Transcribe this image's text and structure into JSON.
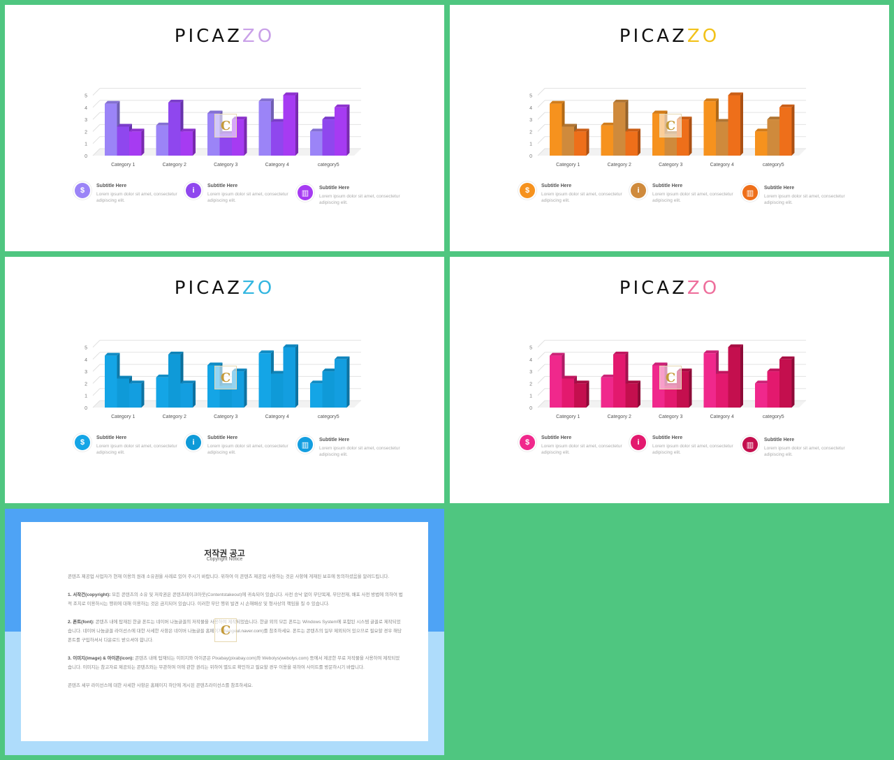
{
  "brand": {
    "prefix": "PICAZ",
    "suffix": "ZO"
  },
  "chart_data": [
    {
      "type": "bar",
      "categories": [
        "Category 1",
        "Category 2",
        "Category 3",
        "Category 4",
        "category5"
      ],
      "series": [
        {
          "values": [
            4.3,
            2.5,
            3.5,
            4.5,
            2.0
          ]
        },
        {
          "values": [
            2.4,
            4.4,
            1.8,
            2.8,
            3.0
          ]
        },
        {
          "values": [
            2.0,
            2.0,
            3.0,
            5.0,
            4.0
          ]
        }
      ],
      "y_ticks": [
        "0",
        "1",
        "2",
        "3",
        "4",
        "5"
      ],
      "ylim": [
        0,
        5
      ],
      "colors": [
        "#9b84f7",
        "#8f47ee",
        "#a63bf2"
      ],
      "accent": "#c9a0e8"
    },
    {
      "type": "bar",
      "categories": [
        "Category 1",
        "Category 2",
        "Category 3",
        "Category 4",
        "category5"
      ],
      "series": [
        {
          "values": [
            4.3,
            2.5,
            3.5,
            4.5,
            2.0
          ]
        },
        {
          "values": [
            2.4,
            4.4,
            1.8,
            2.8,
            3.0
          ]
        },
        {
          "values": [
            2.0,
            2.0,
            3.0,
            5.0,
            4.0
          ]
        }
      ],
      "y_ticks": [
        "0",
        "1",
        "2",
        "3",
        "4",
        "5"
      ],
      "ylim": [
        0,
        5
      ],
      "colors": [
        "#f6921e",
        "#cf8a3c",
        "#ee6f1a"
      ],
      "accent": "#f2c21b"
    },
    {
      "type": "bar",
      "categories": [
        "Category 1",
        "Category 2",
        "Category 3",
        "Category 4",
        "category5"
      ],
      "series": [
        {
          "values": [
            4.3,
            2.5,
            3.5,
            4.5,
            2.0
          ]
        },
        {
          "values": [
            2.4,
            4.4,
            1.8,
            2.8,
            3.0
          ]
        },
        {
          "values": [
            2.0,
            2.0,
            3.0,
            5.0,
            4.0
          ]
        }
      ],
      "y_ticks": [
        "0",
        "1",
        "2",
        "3",
        "4",
        "5"
      ],
      "ylim": [
        0,
        5
      ],
      "colors": [
        "#14a5e6",
        "#0f9ad8",
        "#139ee0"
      ],
      "accent": "#33b6e0"
    },
    {
      "type": "bar",
      "categories": [
        "Category 1",
        "Category 2",
        "Category 3",
        "Category 4",
        "category5"
      ],
      "series": [
        {
          "values": [
            4.3,
            2.5,
            3.5,
            4.5,
            2.0
          ]
        },
        {
          "values": [
            2.4,
            4.4,
            1.8,
            2.8,
            3.0
          ]
        },
        {
          "values": [
            2.0,
            2.0,
            3.0,
            5.0,
            4.0
          ]
        }
      ],
      "y_ticks": [
        "0",
        "1",
        "2",
        "3",
        "4",
        "5"
      ],
      "ylim": [
        0,
        5
      ],
      "colors": [
        "#f0288c",
        "#e3196e",
        "#c40f4e"
      ],
      "accent": "#ee6f9c"
    }
  ],
  "features": [
    {
      "icon": "money-bag-icon",
      "glyph": "$",
      "title": "Subtitle Here",
      "desc": "Lorem ipsum dolor sit amet, consectetur adipiscing elit."
    },
    {
      "icon": "person-info-icon",
      "glyph": "i",
      "title": "Subtitle Here",
      "desc": "Lorem ipsum dolor sit amet, consectetur adipiscing elit."
    },
    {
      "icon": "chart-icon",
      "glyph": "▥",
      "title": "Subtitle Here",
      "desc": "Lorem ipsum dolor sit amet, consectetur adipiscing elit."
    }
  ],
  "watermark": "C",
  "copyright": {
    "title": "저작권 공고",
    "subtitle": "Copyright Notice",
    "intro": "콘텐츠 제공업 사업자가 현재 이용의 원래 소유권을 사례로 있어 주시기 바랍니다. 위하여 이 콘텐츠 제공업 사용하는 것은 사항에 게재된 보호에 동의하셨음을 알려드립니다.",
    "p1_label": "1. 서작건(copyright):",
    "p1": "모든 콘텐츠의 소유 및 저작권은 콘텐츠테이크아웃(Contentstakeout)에 귀속되어 있습니다. 사전 승낙 없이 무단복제, 무단전재, 배포 사전 방법에 의하여 법적 조치로 이용하시는 행위에 대해 이용하는 것은 금지되어 있습니다. 이러한 무단 행위 발견 시 손해배상 및 형사상의 책임을 질 수 있습니다.",
    "p2_label": "2. 폰트(font):",
    "p2": "콘텐츠 내에 탑재된 한글 폰트는 네이버 나눔글꼴의 저작물을 사용하여 제작되었습니다. 한글 외의 모든 폰트는 Windows System에 포함된 시스템 글꼴로 제작되었습니다. 네이버 나눔글꼴 라이선스에 대한 사세한 사항은 네이버 나눔글꼴 홈페이지(hangeul.naver.com)를 참조하세요. 폰트는 콘텐츠의 일부 제외되어 있으므로 필요할 경우 해당 폰트를 구입하셔서 다운로드 받으셔야 합니다.",
    "p3_label": "3. 이미지(image) & 아이콘(icon):",
    "p3": "콘텐츠 내에 탑재되는 이미지와 아이콘은 Pixabay(pixabay.com)와 Webolys(webolys.com) 등에서 제공한 무료 저작물을 사용하여 제작되었습니다. 이미지는 참고자료 제공되는 콘텐츠와는 무관하며 이에 관한 권리는 위하여 별도로 확인하고 필요할 경우 이용을 위하여 사이트를 방문하시기 바랍니다.",
    "footer": "콘텐츠 세부 라이선스에 대한 사세한 사항은 홈페이지 하단에 게시된 콘텐츠라이선스를 참조하세요."
  }
}
